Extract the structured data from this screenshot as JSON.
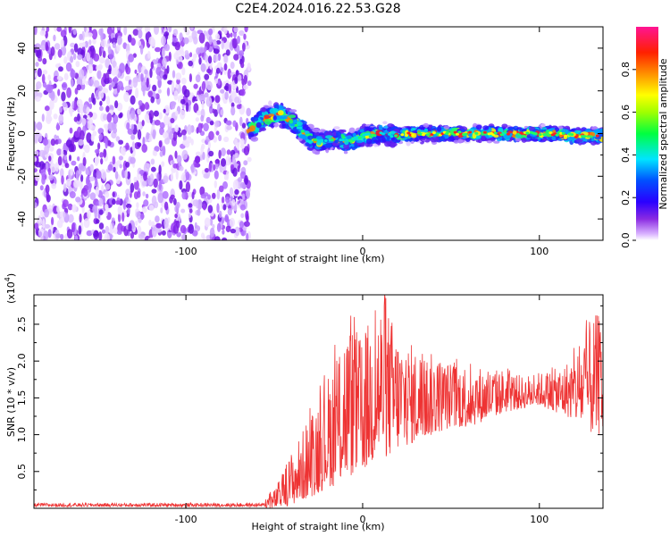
{
  "title": "C2E4.2024.016.22.53.G28",
  "chart_data": [
    {
      "type": "heatmap",
      "name": "spectrogram",
      "xlabel": "Height of straight line (km)",
      "ylabel": "Frequency (Hz)",
      "xlim": [
        -186,
        136
      ],
      "ylim": [
        -50,
        50
      ],
      "x_ticks": [
        -100,
        0,
        100
      ],
      "y_ticks": [
        -40,
        -20,
        0,
        20,
        40
      ],
      "noise_region_x": [
        -186,
        -64
      ],
      "signal_track": {
        "x": [
          -64,
          -58,
          -52,
          -46,
          -40,
          -35,
          -30,
          -25,
          -20,
          -15,
          -10,
          -5,
          0,
          10,
          20,
          30,
          40,
          50,
          60,
          70,
          80,
          90,
          100,
          110,
          120,
          130,
          136
        ],
        "freq": [
          1,
          6,
          8,
          9,
          6,
          2,
          -2,
          -4,
          -3,
          -2,
          -4,
          -3,
          -1,
          0,
          -1,
          0,
          0,
          0,
          0,
          0,
          0,
          0,
          0,
          0,
          -1,
          -1,
          -1
        ]
      },
      "colorbar": {
        "label": "Normalized spectral amplitude",
        "range": [
          0,
          1
        ],
        "ticks": [
          "0.0",
          "0.2",
          "0.4",
          "0.6",
          "0.8"
        ],
        "colors": [
          "#ffffff",
          "#e6ccff",
          "#8a2be2",
          "#5a00f0",
          "#0000ff",
          "#00ffff",
          "#00ff00",
          "#ffff00",
          "#ff8c00",
          "#ff0000",
          "#ff1493"
        ]
      }
    },
    {
      "type": "line",
      "name": "snr",
      "xlabel": "Height of straight line (km)",
      "ylabel": "SNR (10 * v/v)",
      "multiplier_label": "(x10",
      "multiplier_exp": "4",
      "xlim": [
        -186,
        136
      ],
      "ylim": [
        0,
        2.9
      ],
      "x_ticks": [
        -100,
        0,
        100
      ],
      "y_ticks": [
        "0.5",
        "1.0",
        "1.5",
        "2.0",
        "2.5"
      ],
      "color": "#ee3333",
      "envelope": {
        "x": [
          -186,
          -70,
          -60,
          -50,
          -45,
          -40,
          -35,
          -30,
          -25,
          -20,
          -15,
          -10,
          -5,
          0,
          5,
          10,
          15,
          20,
          30,
          40,
          50,
          60,
          70,
          80,
          90,
          100,
          110,
          120,
          125,
          130,
          136
        ],
        "low": [
          0.0,
          0.0,
          0.0,
          0.0,
          0.02,
          0.05,
          0.1,
          0.15,
          0.2,
          0.3,
          0.3,
          0.4,
          0.45,
          0.5,
          0.6,
          0.7,
          0.7,
          0.8,
          0.9,
          1.0,
          1.1,
          1.1,
          1.2,
          1.3,
          1.35,
          1.4,
          1.3,
          1.2,
          1.1,
          1.0,
          1.0
        ],
        "high": [
          0.08,
          0.08,
          0.1,
          0.25,
          0.5,
          0.8,
          1.0,
          1.3,
          1.6,
          1.8,
          2.2,
          2.6,
          2.5,
          2.3,
          2.7,
          2.9,
          2.7,
          2.4,
          2.2,
          2.1,
          2.0,
          2.0,
          1.9,
          1.9,
          1.8,
          1.85,
          1.9,
          2.1,
          2.4,
          2.6,
          2.7
        ]
      }
    }
  ]
}
